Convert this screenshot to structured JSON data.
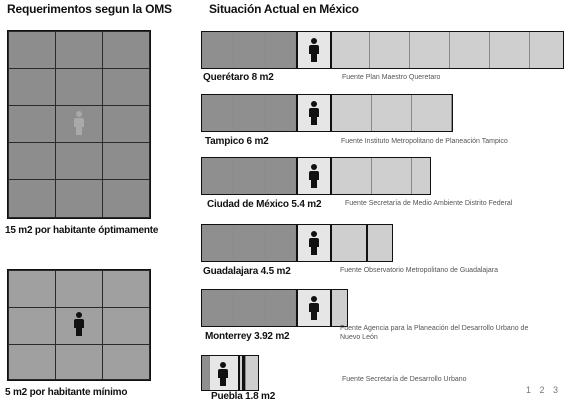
{
  "left": {
    "title": "Requerimentos segun la OMS",
    "optimal_caption": "15 m2 por habitante óptimamente",
    "minimum_caption": "5 m2 por habitante mínimo"
  },
  "right": {
    "title": "Situación Actual en México",
    "cities": [
      {
        "name": "Querétaro 8 m2",
        "source": "Fuente Plan Maestro Queretaro"
      },
      {
        "name": "Tampico 6 m2",
        "source": "Fuente Instituto Metropolitano de Planeación Tampico"
      },
      {
        "name": "Ciudad de México 5.4 m2",
        "source": "Fuente Secretaría de Medio Ambiente Distrito Federal"
      },
      {
        "name": "Guadalajara 4.5 m2",
        "source": "Fuente Observatorio Metropolitano de Guadalajara"
      },
      {
        "name": "Monterrey 3.92 m2",
        "source": "Fuente Agencia para la Planeación del Desarrollo Urbano de Nuevo León"
      },
      {
        "name": "Puebla 1.8 m2",
        "source": "Fuente Secretaría de Desarrollo Urbano"
      }
    ]
  },
  "pagination": "1 2 3",
  "icons": {
    "person": "person-icon"
  }
}
